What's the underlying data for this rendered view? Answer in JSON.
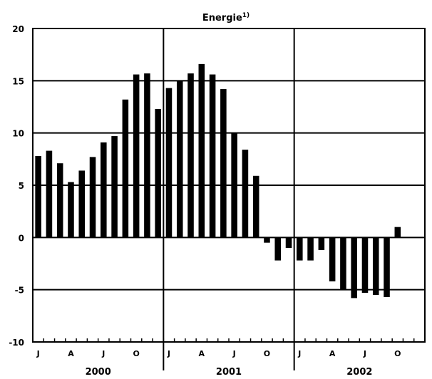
{
  "chart_data": {
    "type": "bar",
    "title": "Energie",
    "title_superscript": "1)",
    "ylim": [
      -10,
      20
    ],
    "y_ticks": [
      20,
      15,
      10,
      5,
      0,
      -5,
      -10
    ],
    "grid": true,
    "month_labels": [
      "J",
      "A",
      "J",
      "O",
      "J",
      "A",
      "J",
      "O",
      "J",
      "A",
      "J",
      "O"
    ],
    "year_labels": [
      "2000",
      "2001",
      "2002"
    ],
    "categories": [
      "2000-01",
      "2000-02",
      "2000-03",
      "2000-04",
      "2000-05",
      "2000-06",
      "2000-07",
      "2000-08",
      "2000-09",
      "2000-10",
      "2000-11",
      "2000-12",
      "2001-01",
      "2001-02",
      "2001-03",
      "2001-04",
      "2001-05",
      "2001-06",
      "2001-07",
      "2001-08",
      "2001-09",
      "2001-10",
      "2001-11",
      "2001-12",
      "2002-01",
      "2002-02",
      "2002-03",
      "2002-04",
      "2002-05",
      "2002-06",
      "2002-07",
      "2002-08",
      "2002-09",
      "2002-10"
    ],
    "values": [
      7.8,
      8.3,
      7.1,
      5.3,
      6.4,
      7.7,
      9.1,
      9.7,
      13.2,
      15.6,
      15.7,
      12.3,
      14.3,
      15.0,
      15.7,
      16.6,
      15.6,
      14.2,
      10.0,
      8.4,
      5.9,
      -0.5,
      -2.2,
      -1.0,
      -2.2,
      -2.2,
      -1.2,
      -4.2,
      -5.0,
      -5.8,
      -5.3,
      -5.5,
      -5.7,
      1.0
    ],
    "bar_color": "#000000"
  }
}
